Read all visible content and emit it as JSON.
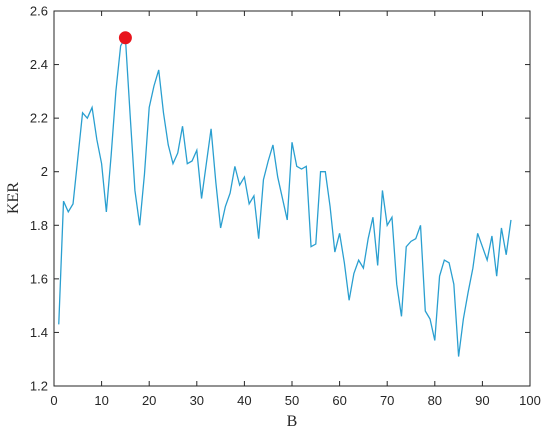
{
  "chart_data": {
    "type": "line",
    "title": "",
    "xlabel": "B",
    "ylabel": "KER",
    "xlim": [
      0,
      100
    ],
    "ylim": [
      1.2,
      2.6
    ],
    "xticks": [
      "0",
      "10",
      "20",
      "30",
      "40",
      "50",
      "60",
      "70",
      "80",
      "90",
      "100"
    ],
    "yticks": [
      "1.2",
      "1.4",
      "1.6",
      "1.8",
      "2",
      "2.2",
      "2.4",
      "2.6"
    ],
    "grid": false,
    "series": [
      {
        "color": "#2a9fd0",
        "x": [
          1,
          2,
          3,
          4,
          5,
          6,
          7,
          8,
          9,
          10,
          11,
          12,
          13,
          14,
          15,
          16,
          17,
          18,
          19,
          20,
          21,
          22,
          23,
          24,
          25,
          26,
          27,
          28,
          29,
          30,
          31,
          32,
          33,
          34,
          35,
          36,
          37,
          38,
          39,
          40,
          41,
          42,
          43,
          44,
          45,
          46,
          47,
          48,
          49,
          50,
          51,
          52,
          53,
          54,
          55,
          56,
          57,
          58,
          59,
          60,
          61,
          62,
          63,
          64,
          65,
          66,
          67,
          68,
          69,
          70,
          71,
          72,
          73,
          74,
          75,
          76,
          77,
          78,
          79,
          80,
          81,
          82,
          83,
          84,
          85,
          86,
          87,
          88,
          89,
          90,
          91,
          92,
          93,
          94,
          95,
          96
        ],
        "y": [
          1.43,
          1.89,
          1.85,
          1.88,
          2.05,
          2.22,
          2.2,
          2.24,
          2.12,
          2.03,
          1.85,
          2.06,
          2.3,
          2.47,
          2.5,
          2.21,
          1.93,
          1.8,
          1.99,
          2.24,
          2.32,
          2.38,
          2.22,
          2.1,
          2.03,
          2.07,
          2.17,
          2.03,
          2.04,
          2.08,
          1.9,
          2.03,
          2.16,
          1.96,
          1.79,
          1.87,
          1.92,
          2.02,
          1.95,
          1.98,
          1.88,
          1.91,
          1.75,
          1.97,
          2.04,
          2.1,
          1.98,
          1.9,
          1.82,
          2.11,
          2.02,
          2.01,
          2.02,
          1.72,
          1.73,
          2.0,
          2.0,
          1.87,
          1.7,
          1.77,
          1.66,
          1.52,
          1.62,
          1.67,
          1.64,
          1.75,
          1.83,
          1.65,
          1.93,
          1.8,
          1.83,
          1.58,
          1.46,
          1.72,
          1.74,
          1.75,
          1.8,
          1.48,
          1.45,
          1.37,
          1.61,
          1.67,
          1.66,
          1.58,
          1.31,
          1.45,
          1.55,
          1.64,
          1.77,
          1.72,
          1.67,
          1.76,
          1.61,
          1.79,
          1.69,
          1.82
        ]
      }
    ],
    "highlight": {
      "x": 15,
      "y": 2.5,
      "color": "#e8141c"
    }
  }
}
